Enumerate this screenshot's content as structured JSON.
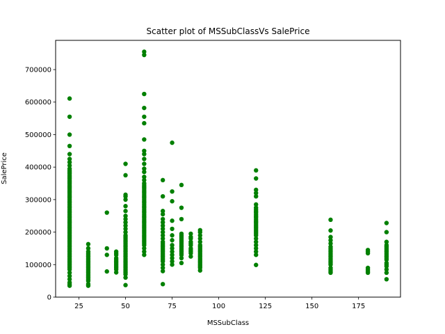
{
  "chart_data": {
    "type": "scatter",
    "title": "Scatter plot of MSSubClassVs SalePrice",
    "xlabel": "MSSubClass",
    "ylabel": "SalePrice",
    "xlim": [
      12.5,
      197.5
    ],
    "ylim": [
      0,
      790000
    ],
    "xticks": [
      25,
      50,
      75,
      100,
      125,
      150,
      175
    ],
    "yticks": [
      0,
      100000,
      200000,
      300000,
      400000,
      500000,
      600000,
      700000
    ],
    "grid": false,
    "marker_color": "#008000",
    "groups": [
      {
        "x": 20,
        "y": [
          35000,
          40000,
          45000,
          55000,
          65000,
          75000,
          85000,
          90000,
          95000,
          100000,
          105000,
          110000,
          115000,
          120000,
          125000,
          130000,
          135000,
          140000,
          145000,
          150000,
          155000,
          160000,
          165000,
          170000,
          175000,
          180000,
          185000,
          190000,
          195000,
          200000,
          205000,
          210000,
          215000,
          220000,
          225000,
          230000,
          235000,
          240000,
          245000,
          250000,
          255000,
          260000,
          265000,
          270000,
          275000,
          280000,
          285000,
          290000,
          295000,
          300000,
          305000,
          310000,
          315000,
          320000,
          325000,
          330000,
          335000,
          340000,
          345000,
          350000,
          355000,
          360000,
          365000,
          370000,
          375000,
          380000,
          385000,
          390000,
          395000,
          405000,
          415000,
          425000,
          440000,
          465000,
          500000,
          555000,
          611000
        ]
      },
      {
        "x": 30,
        "y": [
          35000,
          40000,
          50000,
          55000,
          60000,
          65000,
          70000,
          75000,
          80000,
          85000,
          90000,
          95000,
          100000,
          105000,
          110000,
          115000,
          120000,
          125000,
          130000,
          135000,
          140000,
          150000,
          163000
        ]
      },
      {
        "x": 40,
        "y": [
          79000,
          130000,
          150000,
          260000
        ]
      },
      {
        "x": 45,
        "y": [
          76000,
          85000,
          90000,
          95000,
          100000,
          105000,
          110000,
          115000,
          120000,
          130000,
          135000,
          140000
        ]
      },
      {
        "x": 50,
        "y": [
          37000,
          60000,
          70000,
          75000,
          80000,
          85000,
          90000,
          95000,
          100000,
          105000,
          110000,
          115000,
          120000,
          125000,
          130000,
          135000,
          140000,
          145000,
          150000,
          155000,
          160000,
          165000,
          170000,
          175000,
          180000,
          185000,
          190000,
          200000,
          210000,
          220000,
          230000,
          240000,
          250000,
          265000,
          280000,
          300000,
          310000,
          315000,
          375000,
          410000
        ]
      },
      {
        "x": 60,
        "y": [
          130000,
          140000,
          150000,
          160000,
          165000,
          170000,
          175000,
          180000,
          185000,
          190000,
          195000,
          200000,
          205000,
          210000,
          215000,
          220000,
          225000,
          230000,
          235000,
          240000,
          245000,
          250000,
          255000,
          260000,
          265000,
          270000,
          275000,
          280000,
          285000,
          290000,
          295000,
          300000,
          305000,
          310000,
          315000,
          320000,
          325000,
          330000,
          335000,
          340000,
          345000,
          350000,
          360000,
          370000,
          385000,
          395000,
          410000,
          425000,
          440000,
          450000,
          485000,
          535000,
          555000,
          582000,
          625000,
          745000,
          755000
        ]
      },
      {
        "x": 70,
        "y": [
          40000,
          80000,
          90000,
          100000,
          110000,
          115000,
          120000,
          125000,
          130000,
          135000,
          140000,
          145000,
          150000,
          155000,
          160000,
          165000,
          170000,
          180000,
          190000,
          200000,
          210000,
          220000,
          230000,
          240000,
          255000,
          265000,
          310000,
          360000
        ]
      },
      {
        "x": 75,
        "y": [
          100000,
          110000,
          120000,
          130000,
          140000,
          150000,
          160000,
          175000,
          190000,
          210000,
          235000,
          295000,
          325000,
          475000
        ]
      },
      {
        "x": 80,
        "y": [
          105000,
          120000,
          130000,
          135000,
          140000,
          145000,
          150000,
          155000,
          160000,
          165000,
          170000,
          175000,
          180000,
          185000,
          190000,
          195000,
          240000,
          275000,
          345000
        ]
      },
      {
        "x": 85,
        "y": [
          125000,
          135000,
          140000,
          145000,
          150000,
          160000,
          165000,
          170000,
          180000,
          185000,
          195000
        ]
      },
      {
        "x": 90,
        "y": [
          82000,
          90000,
          95000,
          100000,
          105000,
          110000,
          115000,
          120000,
          125000,
          130000,
          135000,
          140000,
          145000,
          150000,
          155000,
          160000,
          170000,
          180000,
          190000,
          200000,
          206000
        ]
      },
      {
        "x": 120,
        "y": [
          99000,
          130000,
          140000,
          150000,
          160000,
          170000,
          180000,
          190000,
          195000,
          200000,
          205000,
          210000,
          215000,
          220000,
          225000,
          230000,
          235000,
          240000,
          245000,
          250000,
          255000,
          260000,
          265000,
          270000,
          275000,
          285000,
          310000,
          320000,
          330000,
          365000,
          390000
        ]
      },
      {
        "x": 160,
        "y": [
          75000,
          80000,
          85000,
          90000,
          100000,
          105000,
          110000,
          115000,
          120000,
          125000,
          130000,
          135000,
          140000,
          145000,
          150000,
          155000,
          165000,
          175000,
          185000,
          205000,
          238000
        ]
      },
      {
        "x": 180,
        "y": [
          75000,
          80000,
          85000,
          90000,
          135000,
          140000,
          145000
        ]
      },
      {
        "x": 190,
        "y": [
          55000,
          75000,
          85000,
          95000,
          100000,
          105000,
          115000,
          120000,
          125000,
          130000,
          135000,
          140000,
          145000,
          150000,
          155000,
          160000,
          170000,
          200000,
          228000
        ]
      }
    ]
  }
}
